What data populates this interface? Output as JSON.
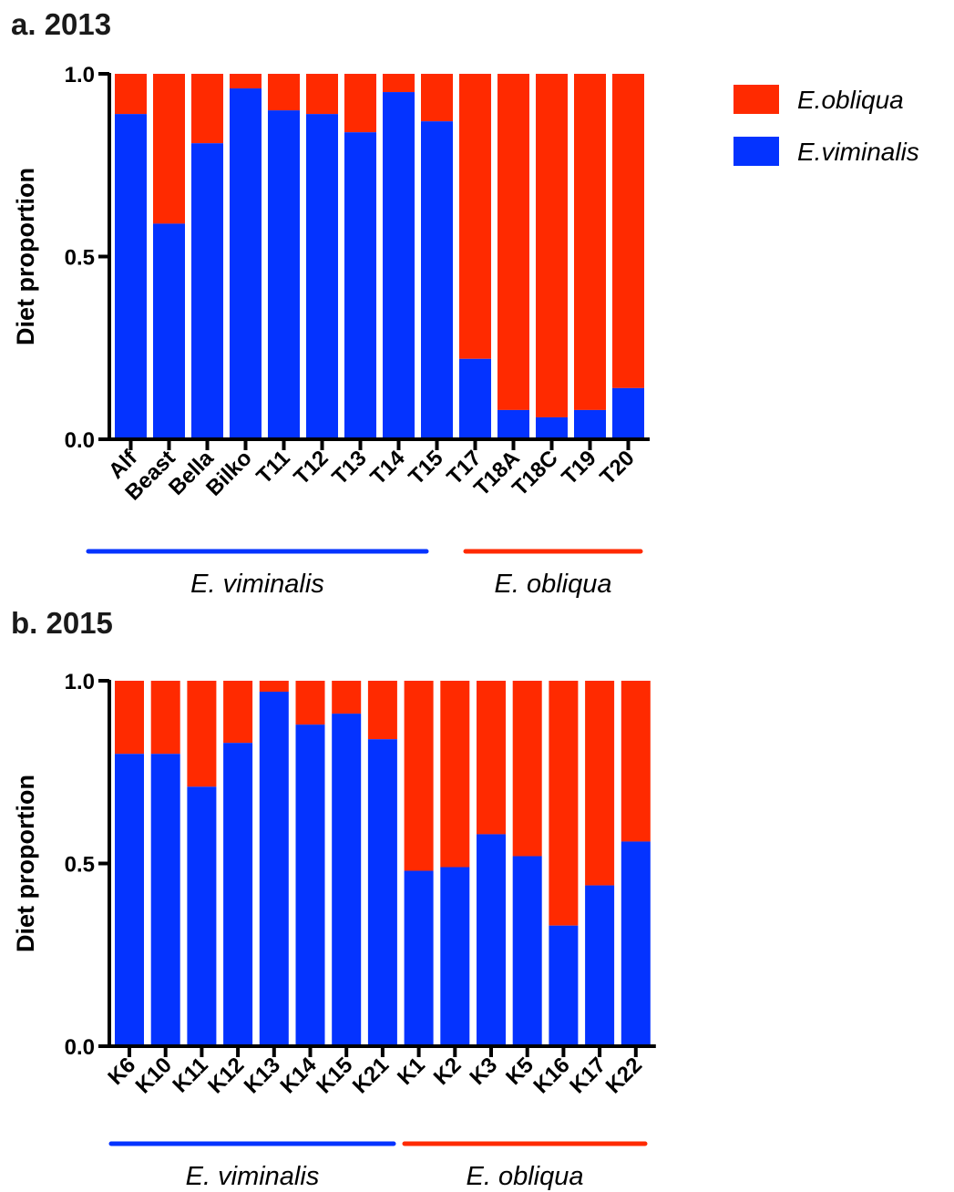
{
  "colors": {
    "e_obliqua": "#ff2a00",
    "e_viminalis": "#0433ff",
    "axis": "#000000"
  },
  "legend": [
    {
      "label": "E.obliqua",
      "color": "#ff2a00"
    },
    {
      "label": "E.viminalis",
      "color": "#0433ff"
    }
  ],
  "chart_data": [
    {
      "type": "bar",
      "stacked": true,
      "title": "a. 2013",
      "ylabel": "Diet proportion",
      "ylim": [
        0,
        1
      ],
      "yticks": [
        "0.0",
        "0.5",
        "1.0"
      ],
      "categories": [
        "Alf",
        "Beast",
        "Bella",
        "Bilko",
        "T11",
        "T12",
        "T13",
        "T14",
        "T15",
        "T17",
        "T18A",
        "T18C",
        "T19",
        "T20"
      ],
      "series": [
        {
          "name": "E.viminalis",
          "values": [
            0.89,
            0.59,
            0.81,
            0.96,
            0.9,
            0.89,
            0.84,
            0.95,
            0.87,
            0.22,
            0.08,
            0.06,
            0.08,
            0.14
          ]
        },
        {
          "name": "E.obliqua",
          "values": [
            0.11,
            0.41,
            0.19,
            0.04,
            0.1,
            0.11,
            0.16,
            0.05,
            0.13,
            0.78,
            0.92,
            0.94,
            0.92,
            0.86
          ]
        }
      ],
      "groups": [
        {
          "label": "E. viminalis",
          "color": "#0433ff",
          "categories": [
            "Alf",
            "Beast",
            "Bella",
            "Bilko",
            "T11",
            "T12",
            "T13",
            "T14",
            "T15"
          ]
        },
        {
          "label": "E. obliqua",
          "color": "#ff2a00",
          "categories": [
            "T17",
            "T18A",
            "T18C",
            "T19",
            "T20"
          ]
        }
      ]
    },
    {
      "type": "bar",
      "stacked": true,
      "title": "b. 2015",
      "ylabel": "Diet proportion",
      "ylim": [
        0,
        1
      ],
      "yticks": [
        "0.0",
        "0.5",
        "1.0"
      ],
      "categories": [
        "K6",
        "K10",
        "K11",
        "K12",
        "K13",
        "K14",
        "K15",
        "K21",
        "K1",
        "K2",
        "K3",
        "K5",
        "K16",
        "K17",
        "K22"
      ],
      "series": [
        {
          "name": "E.viminalis",
          "values": [
            0.8,
            0.8,
            0.71,
            0.83,
            0.97,
            0.88,
            0.91,
            0.84,
            0.48,
            0.49,
            0.58,
            0.52,
            0.33,
            0.44,
            0.56
          ]
        },
        {
          "name": "E.obliqua",
          "values": [
            0.2,
            0.2,
            0.29,
            0.17,
            0.03,
            0.12,
            0.09,
            0.16,
            0.52,
            0.51,
            0.42,
            0.48,
            0.67,
            0.56,
            0.44
          ]
        }
      ],
      "groups": [
        {
          "label": "E. viminalis",
          "color": "#0433ff",
          "categories": [
            "K6",
            "K10",
            "K11",
            "K12",
            "K13",
            "K14",
            "K15",
            "K21"
          ]
        },
        {
          "label": "E. obliqua",
          "color": "#ff2a00",
          "categories": [
            "K1",
            "K2",
            "K3",
            "K5",
            "K16",
            "K17",
            "K22"
          ]
        }
      ]
    }
  ]
}
